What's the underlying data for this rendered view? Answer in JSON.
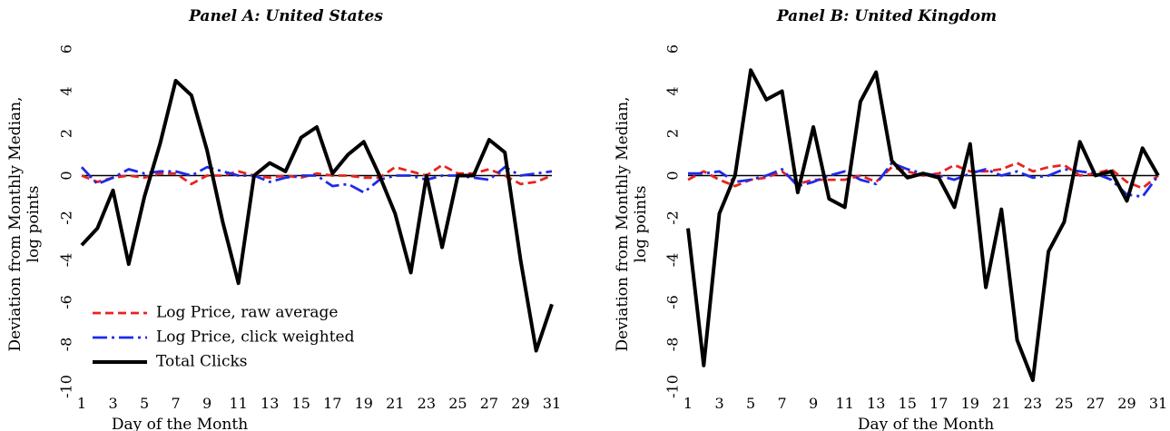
{
  "chart_data": [
    {
      "type": "line",
      "title": "Panel A: United States",
      "xlabel": "Day of the Month",
      "ylabel_line1": "Deviation from Monthly Median,",
      "ylabel_line2": "log points",
      "xlim": [
        1,
        31
      ],
      "ylim": [
        -10,
        6
      ],
      "xticks": [
        1,
        3,
        5,
        7,
        9,
        11,
        13,
        15,
        17,
        19,
        21,
        23,
        25,
        27,
        29,
        31
      ],
      "yticks": [
        -10,
        -8,
        -6,
        -4,
        -2,
        0,
        2,
        4,
        6
      ],
      "legend": "inside-lower-left",
      "x": [
        1,
        2,
        3,
        4,
        5,
        6,
        7,
        8,
        9,
        10,
        11,
        12,
        13,
        14,
        15,
        16,
        17,
        18,
        19,
        20,
        21,
        22,
        23,
        24,
        25,
        26,
        27,
        28,
        29,
        30,
        31
      ],
      "series": [
        {
          "name": "Log Price, raw average",
          "color": "#e8231f",
          "style": "dashed",
          "values": [
            0.0,
            -0.3,
            -0.1,
            0.0,
            -0.1,
            0.1,
            0.1,
            -0.4,
            0.0,
            0.0,
            0.2,
            0.0,
            -0.1,
            0.0,
            -0.1,
            0.1,
            0.0,
            0.0,
            -0.1,
            -0.1,
            0.4,
            0.2,
            0.0,
            0.5,
            0.1,
            0.1,
            0.3,
            0.0,
            -0.4,
            -0.3,
            0.0
          ]
        },
        {
          "name": "Log Price, click weighted",
          "color": "#1f2ae8",
          "style": "dashdot",
          "values": [
            0.4,
            -0.4,
            -0.1,
            0.3,
            0.1,
            0.2,
            0.2,
            0.0,
            0.4,
            0.2,
            0.0,
            0.0,
            -0.3,
            -0.1,
            0.0,
            0.0,
            -0.5,
            -0.4,
            -0.8,
            -0.2,
            0.0,
            0.0,
            -0.2,
            0.0,
            0.0,
            -0.1,
            -0.2,
            0.4,
            0.0,
            0.1,
            0.2
          ]
        },
        {
          "name": "Total Clicks",
          "color": "#000000",
          "style": "solid",
          "values": [
            -3.3,
            -2.5,
            -0.7,
            -4.2,
            -1.0,
            1.5,
            4.5,
            3.8,
            1.2,
            -2.2,
            -5.1,
            0.0,
            0.6,
            0.2,
            1.8,
            2.3,
            0.1,
            1.0,
            1.6,
            0.0,
            -1.8,
            -4.6,
            0.0,
            -3.4,
            0.0,
            0.0,
            1.7,
            1.1,
            -4.0,
            -8.3,
            -6.1
          ]
        }
      ]
    },
    {
      "type": "line",
      "title": "Panel B: United Kingdom",
      "xlabel": "Day of the Month",
      "ylabel_line1": "Deviation from Monthly Median,",
      "ylabel_line2": "log points",
      "xlim": [
        1,
        31
      ],
      "ylim": [
        -10,
        6
      ],
      "xticks": [
        1,
        3,
        5,
        7,
        9,
        11,
        13,
        15,
        17,
        19,
        21,
        23,
        25,
        27,
        29,
        31
      ],
      "yticks": [
        -10,
        -8,
        -6,
        -4,
        -2,
        0,
        2,
        4,
        6
      ],
      "legend": "none",
      "x": [
        1,
        2,
        3,
        4,
        5,
        6,
        7,
        8,
        9,
        10,
        11,
        12,
        13,
        14,
        15,
        16,
        17,
        18,
        19,
        20,
        21,
        22,
        23,
        24,
        25,
        26,
        27,
        28,
        29,
        30,
        31
      ],
      "series": [
        {
          "name": "Log Price, raw average",
          "color": "#e8231f",
          "style": "dashed",
          "values": [
            -0.2,
            0.2,
            -0.2,
            -0.5,
            -0.2,
            -0.1,
            0.2,
            -0.4,
            -0.2,
            -0.2,
            -0.2,
            0.0,
            -0.3,
            0.4,
            0.2,
            0.0,
            0.1,
            0.5,
            0.2,
            0.2,
            0.3,
            0.6,
            0.2,
            0.4,
            0.5,
            0.0,
            0.1,
            0.3,
            -0.3,
            -0.6,
            0.0
          ]
        },
        {
          "name": "Log Price, click weighted",
          "color": "#1f2ae8",
          "style": "dashdot",
          "values": [
            0.1,
            0.1,
            0.2,
            -0.3,
            -0.2,
            0.0,
            0.3,
            -0.5,
            -0.3,
            0.0,
            0.2,
            -0.2,
            -0.4,
            0.6,
            0.3,
            0.1,
            0.0,
            -0.2,
            0.1,
            0.3,
            0.0,
            0.2,
            -0.1,
            0.0,
            0.3,
            0.2,
            0.1,
            -0.2,
            -0.9,
            -1.0,
            0.0
          ]
        },
        {
          "name": "Total Clicks",
          "color": "#000000",
          "style": "solid",
          "values": [
            -2.5,
            -9.0,
            -1.8,
            0.0,
            5.0,
            3.6,
            4.0,
            -0.8,
            2.3,
            -1.1,
            -1.5,
            3.5,
            4.9,
            0.7,
            -0.1,
            0.1,
            -0.1,
            -1.5,
            1.5,
            -5.3,
            -1.6,
            -7.8,
            -9.7,
            -3.6,
            -2.2,
            1.6,
            0.0,
            0.2,
            -1.2,
            1.3,
            0.0
          ]
        }
      ]
    }
  ]
}
